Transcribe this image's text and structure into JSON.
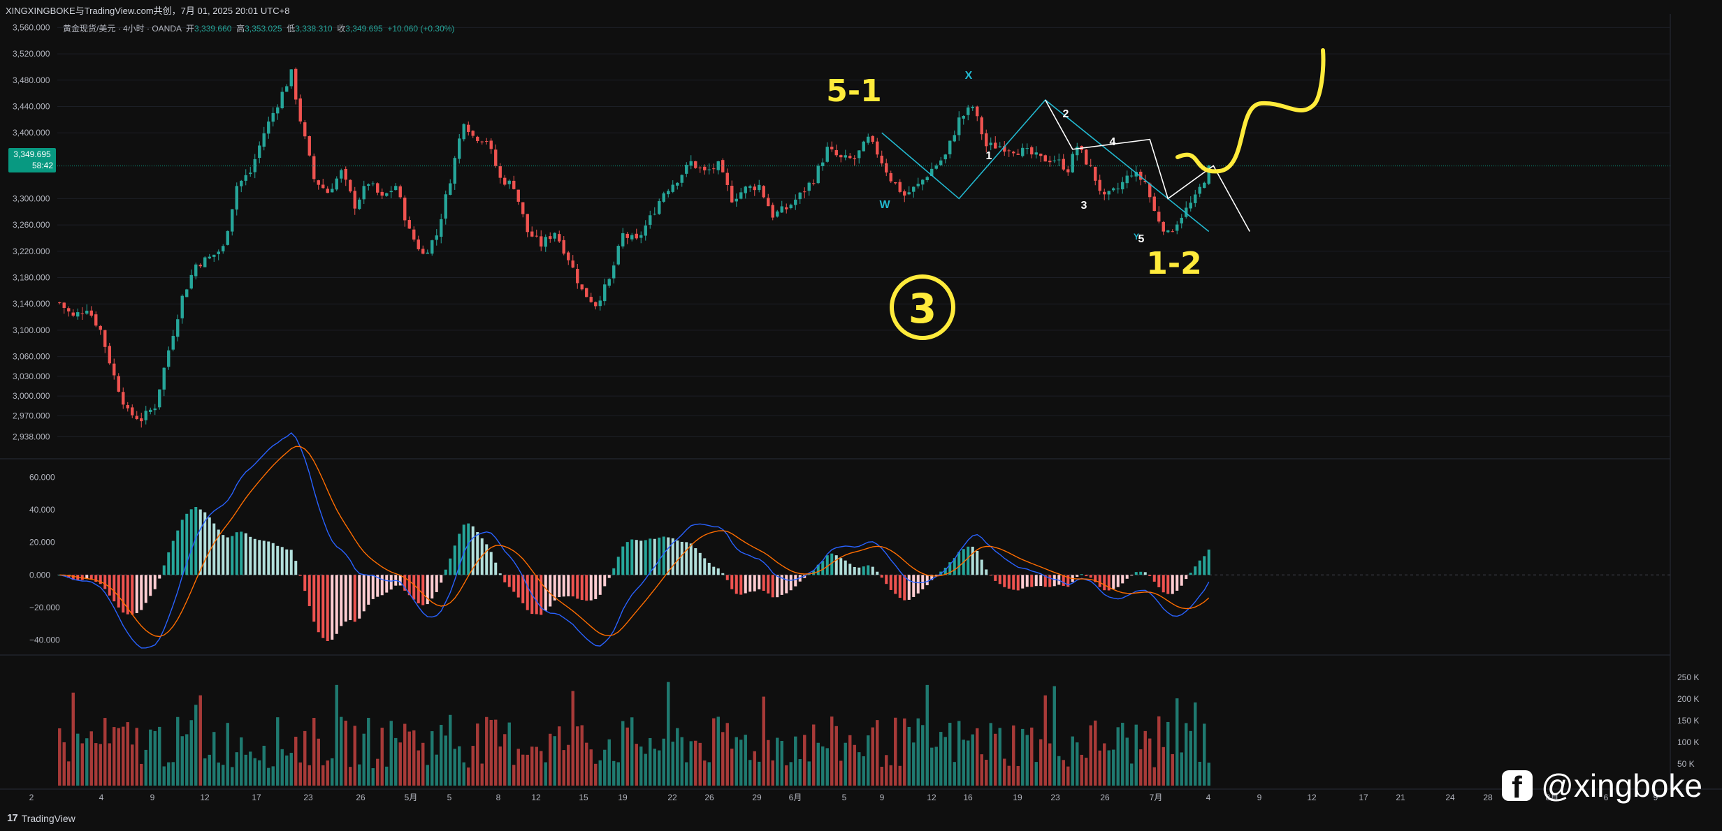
{
  "header": {
    "title": "XINGXINGBOKE与TradingView.com共创，7月 01, 2025 20:01 UTC+8",
    "symbol": "黄金现货/美元 · 4小时 · OANDA",
    "open_label": "开",
    "open_value": "3,339.660",
    "high_label": "高",
    "high_value": "3,353.025",
    "low_label": "低",
    "low_value": "3,338.310",
    "close_label": "收",
    "close_value": "3,349.695",
    "change": "+10.060 (+0.30%)"
  },
  "price_tag": {
    "price": "3,349.695",
    "countdown": "58:42"
  },
  "footer": {
    "brand": "TradingView"
  },
  "watermark": {
    "handle": "@xingboke"
  },
  "colors": {
    "up": "#26a69a",
    "down": "#ef5350",
    "macd": "#2962ff",
    "signal": "#ff6d00",
    "annotation": "#ffeb3b",
    "wave_cyan": "#22b8cf",
    "wave_white": "#ffffff"
  },
  "chart_data": {
    "type": "candlestick",
    "panes": [
      "price",
      "macd",
      "volume"
    ],
    "price_axis": {
      "ticks": [
        "3,560.000",
        "3,520.000",
        "3,480.000",
        "3,440.000",
        "3,400.000",
        "3,300.000",
        "3,260.000",
        "3,220.000",
        "3,180.000",
        "3,140.000",
        "3,100.000",
        "3,060.000",
        "3,030.000",
        "3,000.000",
        "2,970.000",
        "2,938.000"
      ],
      "tick_values": [
        3560,
        3520,
        3480,
        3440,
        3400,
        3300,
        3260,
        3220,
        3180,
        3140,
        3100,
        3060,
        3030,
        3000,
        2970,
        2938
      ],
      "current": 3349.695
    },
    "macd_axis": {
      "ticks": [
        "60.000",
        "40.000",
        "20.000",
        "0.000",
        "−20.000",
        "−40.000"
      ],
      "tick_values": [
        60,
        40,
        20,
        0,
        -20,
        -40
      ]
    },
    "volume_axis": {
      "ticks": [
        "250 K",
        "200 K",
        "150 K",
        "100 K",
        "50 K"
      ],
      "tick_values": [
        250,
        200,
        150,
        100,
        50
      ]
    },
    "x_labels": [
      "2",
      "4",
      "9",
      "12",
      "17",
      "23",
      "26",
      "5月",
      "5",
      "8",
      "12",
      "15",
      "19",
      "22",
      "26",
      "29",
      "6月",
      "5",
      "9",
      "12",
      "16",
      "19",
      "23",
      "26",
      "7月",
      "4",
      "9",
      "12",
      "17",
      "21",
      "24",
      "28",
      "8月",
      "6",
      "9"
    ],
    "price_path": [
      [
        0,
        3142
      ],
      [
        3,
        3120
      ],
      [
        6,
        3135
      ],
      [
        9,
        3100
      ],
      [
        12,
        3030
      ],
      [
        15,
        2975
      ],
      [
        18,
        2965
      ],
      [
        21,
        2985
      ],
      [
        24,
        3070
      ],
      [
        27,
        3150
      ],
      [
        30,
        3200
      ],
      [
        33,
        3210
      ],
      [
        36,
        3225
      ],
      [
        39,
        3320
      ],
      [
        42,
        3340
      ],
      [
        45,
        3400
      ],
      [
        48,
        3445
      ],
      [
        51,
        3490
      ],
      [
        53,
        3420
      ],
      [
        56,
        3330
      ],
      [
        59,
        3310
      ],
      [
        62,
        3340
      ],
      [
        65,
        3290
      ],
      [
        68,
        3325
      ],
      [
        71,
        3300
      ],
      [
        74,
        3320
      ],
      [
        77,
        3250
      ],
      [
        80,
        3215
      ],
      [
        83,
        3245
      ],
      [
        86,
        3330
      ],
      [
        89,
        3420
      ],
      [
        91,
        3395
      ],
      [
        94,
        3390
      ],
      [
        97,
        3330
      ],
      [
        100,
        3320
      ],
      [
        103,
        3250
      ],
      [
        106,
        3230
      ],
      [
        109,
        3250
      ],
      [
        112,
        3210
      ],
      [
        115,
        3160
      ],
      [
        118,
        3140
      ],
      [
        121,
        3175
      ],
      [
        124,
        3245
      ],
      [
        127,
        3235
      ],
      [
        130,
        3270
      ],
      [
        133,
        3310
      ],
      [
        136,
        3330
      ],
      [
        139,
        3355
      ],
      [
        142,
        3340
      ],
      [
        145,
        3350
      ],
      [
        148,
        3300
      ],
      [
        151,
        3315
      ],
      [
        154,
        3320
      ],
      [
        157,
        3275
      ],
      [
        160,
        3285
      ],
      [
        163,
        3305
      ],
      [
        166,
        3330
      ],
      [
        169,
        3375
      ],
      [
        172,
        3360
      ],
      [
        175,
        3360
      ],
      [
        178,
        3390
      ],
      [
        180,
        3370
      ],
      [
        183,
        3330
      ],
      [
        186,
        3305
      ],
      [
        189,
        3320
      ],
      [
        192,
        3345
      ],
      [
        195,
        3365
      ],
      [
        198,
        3420
      ],
      [
        201,
        3440
      ],
      [
        204,
        3380
      ],
      [
        207,
        3380
      ],
      [
        210,
        3375
      ],
      [
        213,
        3370
      ],
      [
        216,
        3360
      ],
      [
        219,
        3360
      ],
      [
        222,
        3345
      ],
      [
        224,
        3380
      ],
      [
        227,
        3345
      ],
      [
        230,
        3300
      ],
      [
        233,
        3315
      ],
      [
        236,
        3340
      ],
      [
        239,
        3325
      ],
      [
        241,
        3280
      ],
      [
        244,
        3245
      ],
      [
        247,
        3275
      ],
      [
        250,
        3300
      ],
      [
        253,
        3345
      ]
    ],
    "annotations": [
      "5-1",
      "X",
      "W",
      "1",
      "2",
      "3",
      "4",
      "5",
      "Y",
      "1-2",
      "3"
    ]
  }
}
